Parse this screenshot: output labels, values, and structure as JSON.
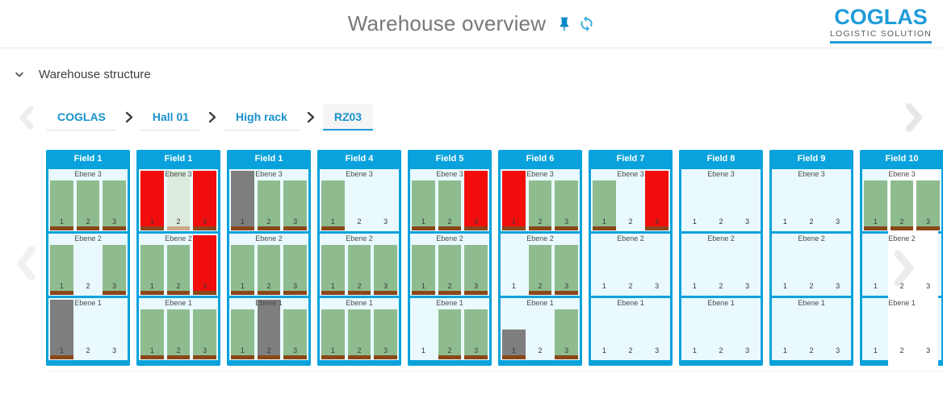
{
  "header": {
    "title": "Warehouse overview",
    "logo": {
      "name": "COGLAS",
      "tagline": "LOGISTIC SOLUTION"
    }
  },
  "section": {
    "label": "Warehouse structure"
  },
  "breadcrumb": {
    "items": [
      {
        "label": "COGLAS",
        "selected": false
      },
      {
        "label": "Hall 01",
        "selected": false
      },
      {
        "label": "High rack",
        "selected": false
      },
      {
        "label": "RZ03",
        "selected": true
      }
    ]
  },
  "icons": {
    "pin": "pin-icon",
    "refresh": "refresh-icon",
    "collapse": "chevron-down-icon",
    "crumb_separator": "chevron-right-icon",
    "scroll_left": "chevron-left-icon",
    "scroll_right": "chevron-right-icon"
  },
  "colors": {
    "accent_blue": "#09A2DC",
    "panel_bg": "#E9F9FE",
    "occupied_green": "#8FBC8F",
    "blocked_red": "#F20D0D",
    "locked_gray": "#7E7E7E",
    "reserved_green": "#DCEBDC",
    "pallet_base_brown": "#8A4718",
    "pallet_base_tan": "#CDA887",
    "link_blue": "#1791CB"
  },
  "fields": [
    {
      "label": "Field 1",
      "levels": [
        {
          "label": "Ebene 3",
          "slots": [
            {
              "n": 1,
              "state": "occupied"
            },
            {
              "n": 2,
              "state": "occupied"
            },
            {
              "n": 3,
              "state": "occupied"
            }
          ]
        },
        {
          "label": "Ebene 2",
          "slots": [
            {
              "n": 1,
              "state": "occupied"
            },
            {
              "n": 2,
              "state": "empty"
            },
            {
              "n": 3,
              "state": "occupied"
            }
          ]
        },
        {
          "label": "Ebene 1",
          "slots": [
            {
              "n": 1,
              "state": "locked"
            },
            {
              "n": 2,
              "state": "empty"
            },
            {
              "n": 3,
              "state": "empty"
            }
          ]
        }
      ]
    },
    {
      "label": "Field 1",
      "levels": [
        {
          "label": "Ebene 3",
          "slots": [
            {
              "n": 1,
              "state": "blocked"
            },
            {
              "n": 2,
              "state": "reserved"
            },
            {
              "n": 3,
              "state": "blocked"
            }
          ]
        },
        {
          "label": "Ebene 2",
          "slots": [
            {
              "n": 1,
              "state": "occupied"
            },
            {
              "n": 2,
              "state": "occupied"
            },
            {
              "n": 3,
              "state": "blocked"
            }
          ]
        },
        {
          "label": "Ebene 1",
          "slots": [
            {
              "n": 1,
              "state": "occupied"
            },
            {
              "n": 2,
              "state": "occupied"
            },
            {
              "n": 3,
              "state": "occupied"
            }
          ]
        }
      ]
    },
    {
      "label": "Field 1",
      "levels": [
        {
          "label": "Ebene 3",
          "slots": [
            {
              "n": 1,
              "state": "locked"
            },
            {
              "n": 2,
              "state": "occupied"
            },
            {
              "n": 3,
              "state": "occupied"
            }
          ]
        },
        {
          "label": "Ebene 2",
          "slots": [
            {
              "n": 1,
              "state": "occupied"
            },
            {
              "n": 2,
              "state": "occupied"
            },
            {
              "n": 3,
              "state": "occupied"
            }
          ]
        },
        {
          "label": "Ebene 1",
          "slots": [
            {
              "n": 1,
              "state": "occupied"
            },
            {
              "n": 2,
              "state": "locked"
            },
            {
              "n": 3,
              "state": "occupied"
            }
          ]
        }
      ]
    },
    {
      "label": "Field 4",
      "levels": [
        {
          "label": "Ebene 3",
          "slots": [
            {
              "n": 1,
              "state": "occupied"
            },
            {
              "n": 2,
              "state": "empty"
            },
            {
              "n": 3,
              "state": "empty"
            }
          ]
        },
        {
          "label": "Ebene 2",
          "slots": [
            {
              "n": 1,
              "state": "occupied"
            },
            {
              "n": 2,
              "state": "occupied"
            },
            {
              "n": 3,
              "state": "occupied"
            }
          ]
        },
        {
          "label": "Ebene 1",
          "slots": [
            {
              "n": 1,
              "state": "occupied"
            },
            {
              "n": 2,
              "state": "occupied"
            },
            {
              "n": 3,
              "state": "occupied"
            }
          ]
        }
      ]
    },
    {
      "label": "Field 5",
      "levels": [
        {
          "label": "Ebene 3",
          "slots": [
            {
              "n": 1,
              "state": "occupied"
            },
            {
              "n": 2,
              "state": "occupied"
            },
            {
              "n": 3,
              "state": "blocked"
            }
          ]
        },
        {
          "label": "Ebene 2",
          "slots": [
            {
              "n": 1,
              "state": "occupied"
            },
            {
              "n": 2,
              "state": "occupied"
            },
            {
              "n": 3,
              "state": "occupied"
            }
          ]
        },
        {
          "label": "Ebene 1",
          "slots": [
            {
              "n": 1,
              "state": "empty"
            },
            {
              "n": 2,
              "state": "occupied"
            },
            {
              "n": 3,
              "state": "occupied"
            }
          ]
        }
      ]
    },
    {
      "label": "Field 6",
      "levels": [
        {
          "label": "Ebene 3",
          "slots": [
            {
              "n": 1,
              "state": "blocked"
            },
            {
              "n": 2,
              "state": "occupied"
            },
            {
              "n": 3,
              "state": "occupied"
            }
          ]
        },
        {
          "label": "Ebene 2",
          "slots": [
            {
              "n": 1,
              "state": "empty"
            },
            {
              "n": 2,
              "state": "occupied"
            },
            {
              "n": 3,
              "state": "occupied"
            }
          ]
        },
        {
          "label": "Ebene 1",
          "slots": [
            {
              "n": 1,
              "state": "locked-half"
            },
            {
              "n": 2,
              "state": "empty"
            },
            {
              "n": 3,
              "state": "occupied"
            }
          ]
        }
      ]
    },
    {
      "label": "Field 7",
      "levels": [
        {
          "label": "Ebene 3",
          "slots": [
            {
              "n": 1,
              "state": "occupied"
            },
            {
              "n": 2,
              "state": "empty"
            },
            {
              "n": 3,
              "state": "blocked"
            }
          ]
        },
        {
          "label": "Ebene 2",
          "slots": [
            {
              "n": 1,
              "state": "empty"
            },
            {
              "n": 2,
              "state": "empty"
            },
            {
              "n": 3,
              "state": "empty"
            }
          ]
        },
        {
          "label": "Ebene 1",
          "slots": [
            {
              "n": 1,
              "state": "empty"
            },
            {
              "n": 2,
              "state": "empty"
            },
            {
              "n": 3,
              "state": "empty"
            }
          ]
        }
      ]
    },
    {
      "label": "Field 8",
      "levels": [
        {
          "label": "Ebene 3",
          "slots": [
            {
              "n": 1,
              "state": "empty"
            },
            {
              "n": 2,
              "state": "empty"
            },
            {
              "n": 3,
              "state": "empty"
            }
          ]
        },
        {
          "label": "Ebene 2",
          "slots": [
            {
              "n": 1,
              "state": "empty"
            },
            {
              "n": 2,
              "state": "empty"
            },
            {
              "n": 3,
              "state": "empty"
            }
          ]
        },
        {
          "label": "Ebene 1",
          "slots": [
            {
              "n": 1,
              "state": "empty"
            },
            {
              "n": 2,
              "state": "empty"
            },
            {
              "n": 3,
              "state": "empty"
            }
          ]
        }
      ]
    },
    {
      "label": "Field 9",
      "levels": [
        {
          "label": "Ebene 3",
          "slots": [
            {
              "n": 1,
              "state": "empty"
            },
            {
              "n": 2,
              "state": "empty"
            },
            {
              "n": 3,
              "state": "empty"
            }
          ]
        },
        {
          "label": "Ebene 2",
          "slots": [
            {
              "n": 1,
              "state": "empty"
            },
            {
              "n": 2,
              "state": "empty"
            },
            {
              "n": 3,
              "state": "empty"
            }
          ]
        },
        {
          "label": "Ebene 1",
          "slots": [
            {
              "n": 1,
              "state": "empty"
            },
            {
              "n": 2,
              "state": "empty"
            },
            {
              "n": 3,
              "state": "empty"
            }
          ]
        }
      ]
    },
    {
      "label": "Field 10",
      "levels": [
        {
          "label": "Ebene 3",
          "slots": [
            {
              "n": 1,
              "state": "occupied"
            },
            {
              "n": 2,
              "state": "occupied"
            },
            {
              "n": 3,
              "state": "occupied"
            }
          ]
        },
        {
          "label": "Ebene 2",
          "slots": [
            {
              "n": 1,
              "state": "empty"
            },
            {
              "n": 2,
              "state": "empty"
            },
            {
              "n": 3,
              "state": "empty"
            }
          ]
        },
        {
          "label": "Ebene 1",
          "slots": [
            {
              "n": 1,
              "state": "empty"
            },
            {
              "n": 2,
              "state": "empty"
            },
            {
              "n": 3,
              "state": "empty"
            }
          ]
        }
      ]
    }
  ]
}
